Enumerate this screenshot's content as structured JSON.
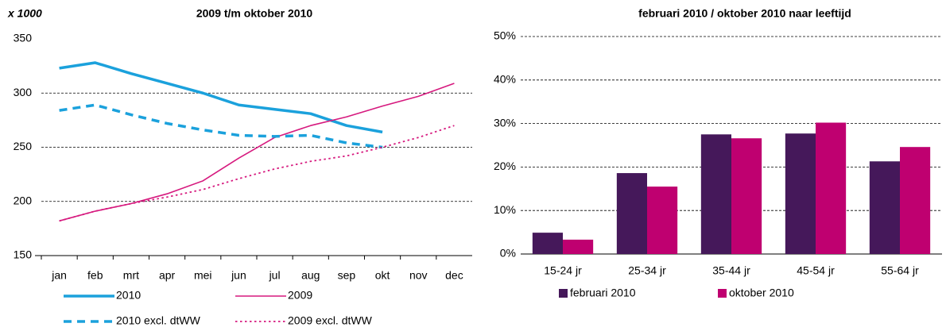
{
  "chart_data": [
    {
      "type": "line",
      "title": "2009 t/m oktober 2010",
      "y_label": "x 1000",
      "categories": [
        "jan",
        "feb",
        "mrt",
        "apr",
        "mei",
        "jun",
        "jul",
        "aug",
        "sep",
        "okt",
        "nov",
        "dec"
      ],
      "ylim": [
        150,
        350
      ],
      "yticks": [
        150,
        200,
        250,
        300,
        350
      ],
      "grid": true,
      "series": [
        {
          "name": "2010",
          "color": "#1ba1dc",
          "line_style": "solid",
          "line_width": 3.5,
          "values": [
            323,
            328,
            318,
            309,
            300,
            289,
            285,
            281,
            270,
            264,
            null,
            null
          ]
        },
        {
          "name": "2009",
          "color": "#d6197e",
          "line_style": "solid",
          "line_width": 1.6,
          "values": [
            182,
            191,
            198,
            207,
            219,
            240,
            259,
            270,
            278,
            288,
            297,
            309
          ]
        },
        {
          "name": "2010 excl. dtWW",
          "color": "#1ba1dc",
          "line_style": "dashed",
          "line_width": 3.5,
          "values": [
            284,
            289,
            280,
            272,
            266,
            261,
            260,
            261,
            254,
            250,
            null,
            null
          ]
        },
        {
          "name": "2009 excl. dtWW",
          "color": "#d6197e",
          "line_style": "dotted",
          "line_width": 1.8,
          "values": [
            182,
            191,
            198,
            204,
            211,
            221,
            230,
            237,
            242,
            250,
            259,
            270
          ]
        }
      ]
    },
    {
      "type": "bar",
      "title": "februari 2010 / oktober 2010 naar leeftijd",
      "categories": [
        "15-24 jr",
        "25-34 jr",
        "35-44 jr",
        "45-54 jr",
        "55-64 jr"
      ],
      "ylim": [
        0,
        50
      ],
      "grid": true,
      "yticks": [
        {
          "value": 0,
          "label": "0%"
        },
        {
          "value": 10,
          "label": "10%"
        },
        {
          "value": 20,
          "label": "20%"
        },
        {
          "value": 30,
          "label": "30%"
        },
        {
          "value": 40,
          "label": "40%"
        },
        {
          "value": 50,
          "label": "50%"
        }
      ],
      "series": [
        {
          "name": "februari 2010",
          "color": "#45185a",
          "values": [
            4.9,
            18.6,
            27.5,
            27.7,
            21.3
          ]
        },
        {
          "name": "oktober 2010",
          "color": "#bf0070",
          "values": [
            3.3,
            15.5,
            26.6,
            30.2,
            24.6
          ]
        }
      ]
    }
  ]
}
